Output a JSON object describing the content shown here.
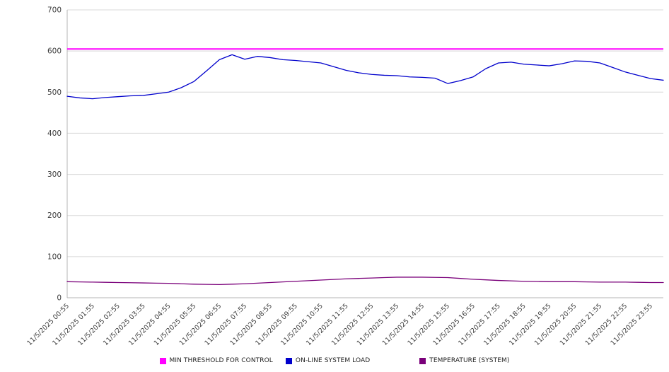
{
  "chart_data": {
    "type": "line",
    "title": "",
    "xlabel": "",
    "ylabel": "",
    "ylim": [
      0,
      700
    ],
    "y_ticks": [
      0,
      100,
      200,
      300,
      400,
      500,
      600,
      700
    ],
    "grid": true,
    "legend_position": "bottom",
    "x_span_hours": 23.5,
    "x_labels": [
      "11/5/2025 00:55",
      "11/5/2025 01:55",
      "11/5/2025 02:55",
      "11/5/2025 03:55",
      "11/5/2025 04:55",
      "11/5/2025 05:55",
      "11/5/2025 06:55",
      "11/5/2025 07:55",
      "11/5/2025 08:55",
      "11/5/2025 09:55",
      "11/5/2025 10:55",
      "11/5/2025 11:55",
      "11/5/2025 12:55",
      "11/5/2025 13:55",
      "11/5/2025 14:55",
      "11/5/2025 15:55",
      "11/5/2025 16:55",
      "11/5/2025 17:55",
      "11/5/2025 18:55",
      "11/5/2025 19:55",
      "11/5/2025 20:55",
      "11/5/2025 21:55",
      "11/5/2025 22:55",
      "11/5/2025 23:55"
    ],
    "threshold": {
      "name": "MIN THRESHOLD FOR CONTROL",
      "value": 605,
      "color": "#ff00ff"
    },
    "series": [
      {
        "name": "ON-LINE SYSTEM LOAD",
        "color": "#0000cc",
        "values": [
          490,
          486,
          484,
          487,
          489,
          491,
          492,
          496,
          500,
          511,
          526,
          552,
          579,
          591,
          580,
          587,
          584,
          579,
          577,
          574,
          571,
          562,
          553,
          547,
          543,
          541,
          540,
          537,
          536,
          534,
          521,
          528,
          537,
          557,
          571,
          573,
          568,
          566,
          564,
          569,
          576,
          575,
          571,
          560,
          549,
          541,
          533,
          529
        ]
      },
      {
        "name": "TEMPERATURE (SYSTEM)",
        "color": "#7a007a",
        "values": [
          39,
          38.5,
          38,
          37.5,
          37,
          36.5,
          36,
          35.5,
          35,
          34,
          33,
          32.5,
          32,
          33,
          34,
          35.5,
          37,
          38.5,
          40,
          41.5,
          43,
          44.5,
          46,
          47,
          48,
          49,
          50,
          50,
          50,
          49.5,
          49,
          47,
          45,
          43.5,
          42,
          41,
          40,
          39.5,
          39,
          39,
          39,
          38.5,
          38,
          38,
          38,
          37.5,
          37,
          37
        ]
      }
    ],
    "colors": {
      "grid": "#d8d8d8",
      "axis": "#b4b4b4",
      "text": "#3c3c3c",
      "background": "#ffffff"
    }
  }
}
